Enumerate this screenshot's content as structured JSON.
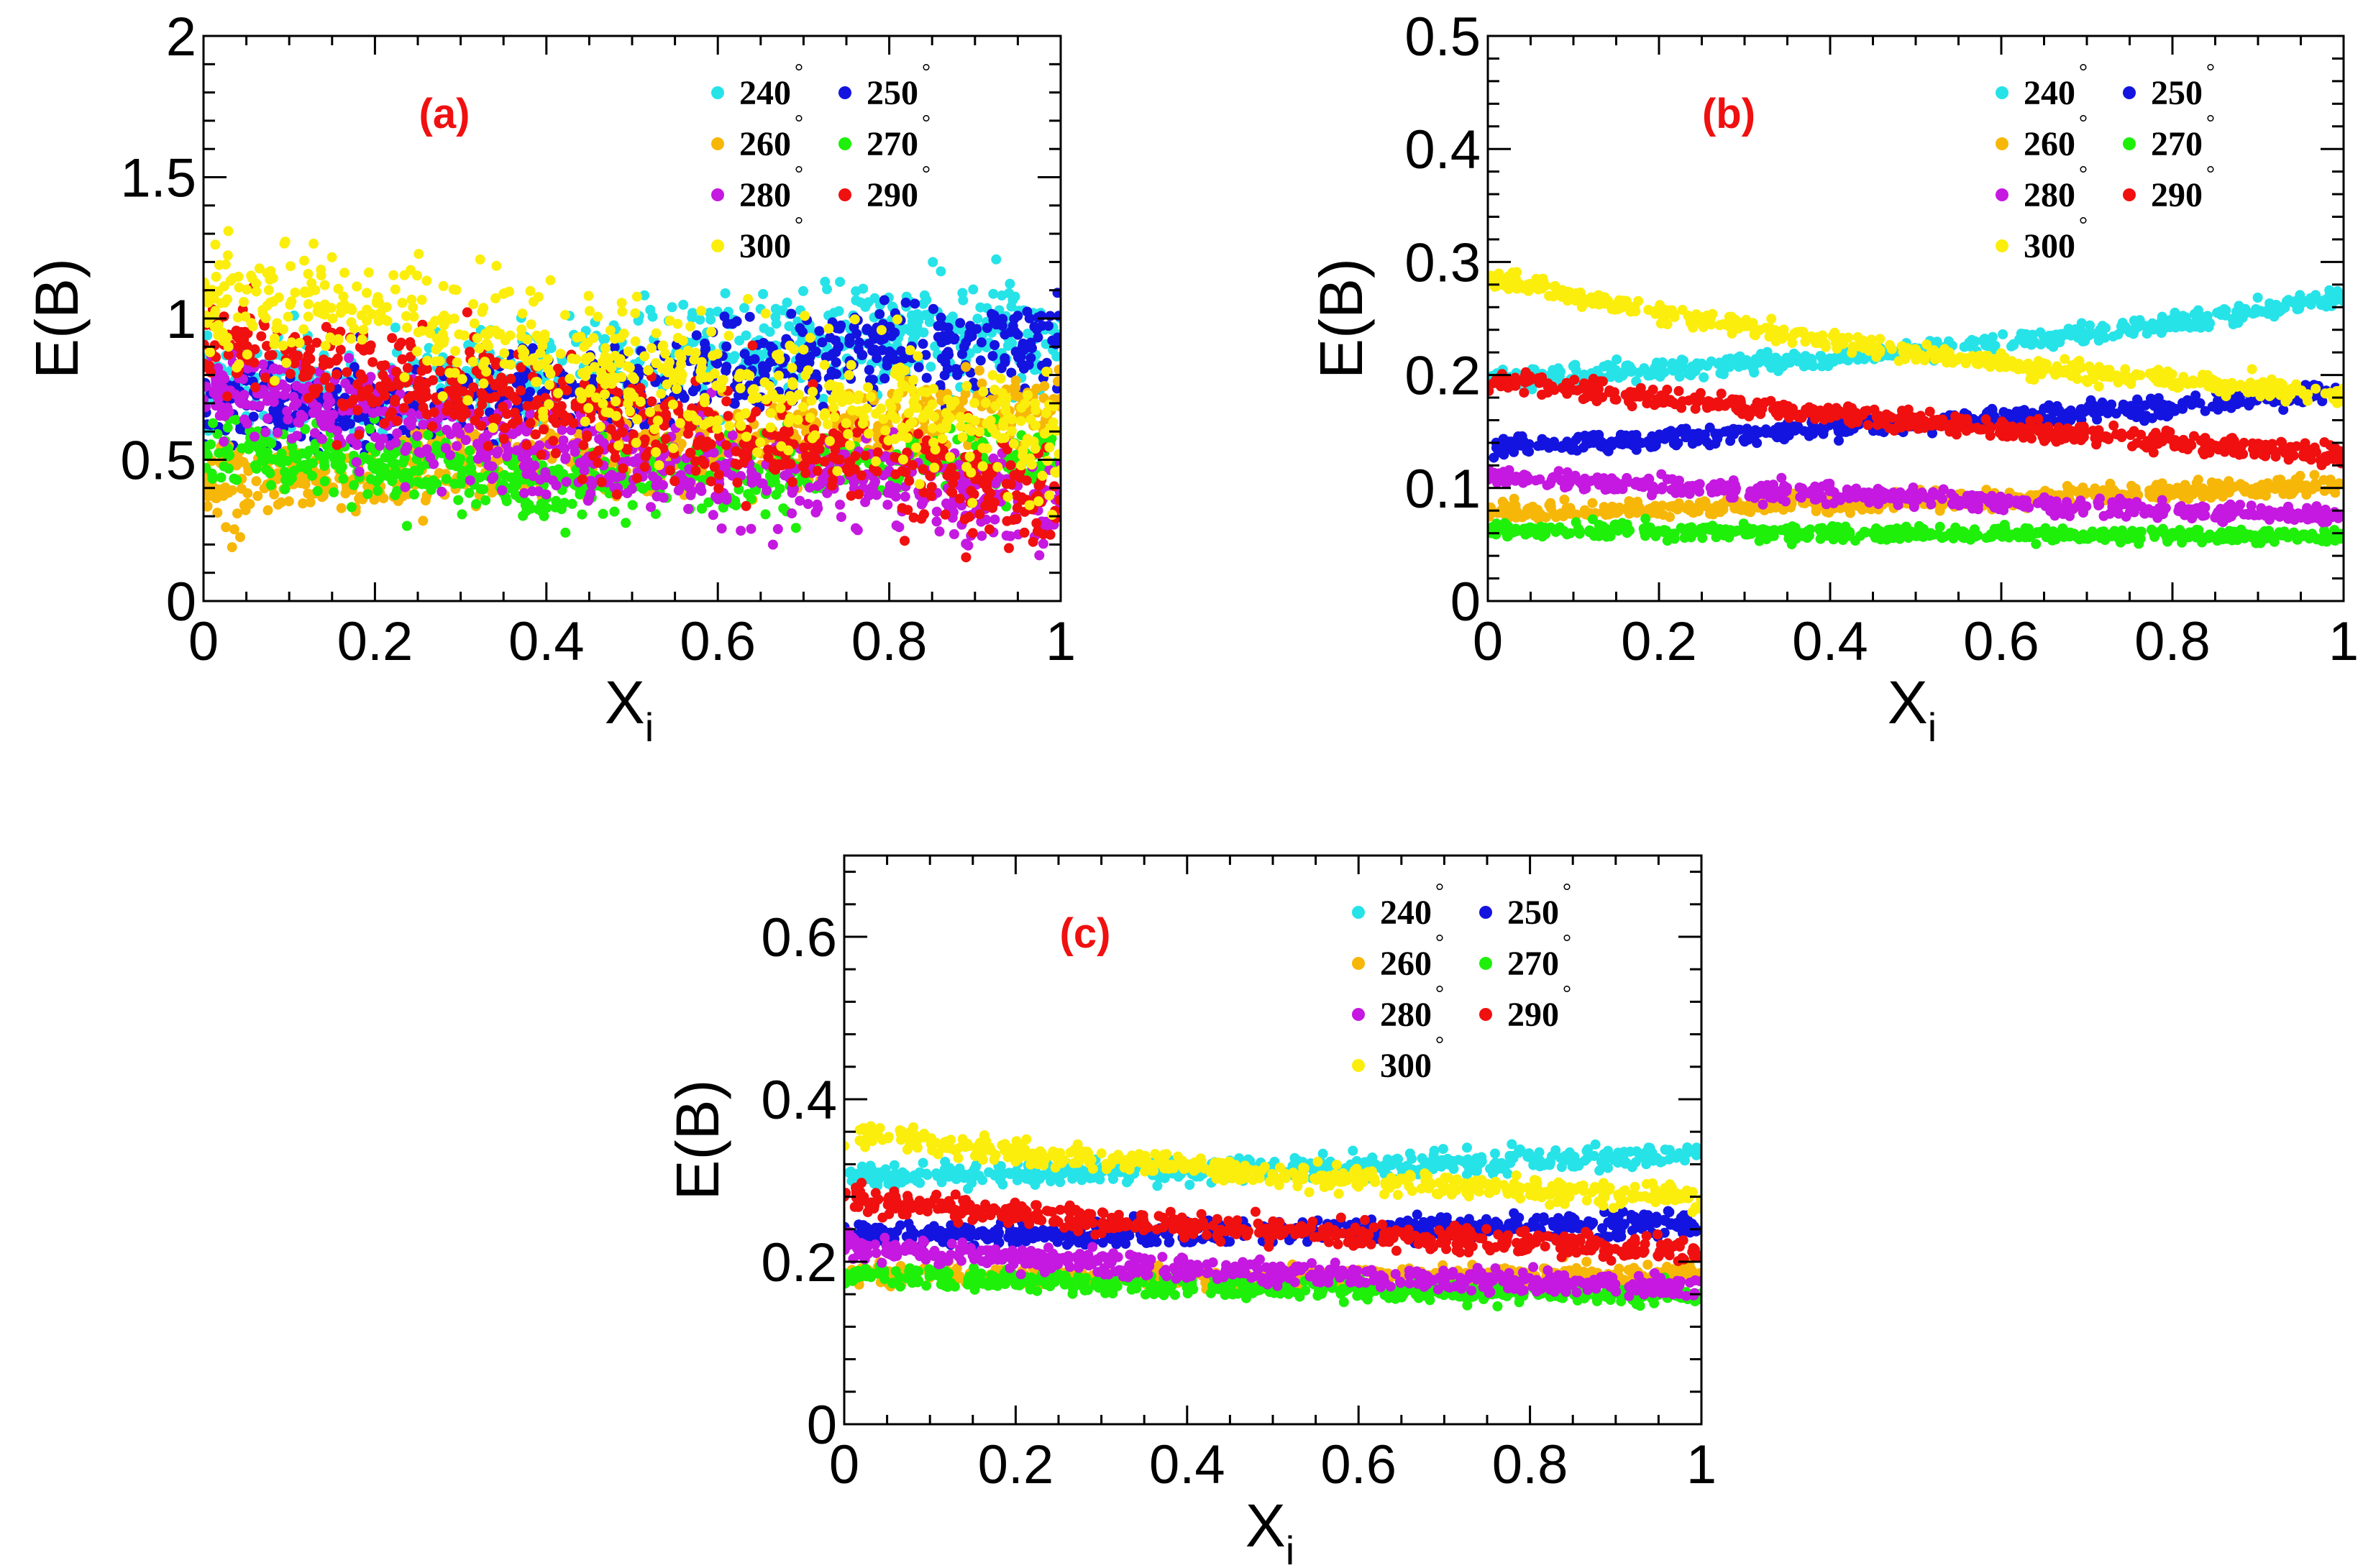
{
  "chart_data": [
    {
      "type": "scatter",
      "panel_label": "(a)",
      "xlabel": "X",
      "xlabel_sub": "i",
      "ylabel": "E(B)",
      "xlim": [
        0,
        1
      ],
      "ylim": [
        0,
        2
      ],
      "xticks": [
        "0",
        "0.2",
        "0.4",
        "0.6",
        "0.8",
        "1"
      ],
      "yticks": [
        "0",
        "0.5",
        "1",
        "1.5",
        "2"
      ],
      "legend_position": "top-right",
      "degree_symbol": "°",
      "series": [
        {
          "name": "240",
          "color": "#26e3e8",
          "x": [
            0,
            0.2,
            0.4,
            0.6,
            0.8,
            1
          ],
          "y": [
            0.75,
            0.72,
            0.8,
            0.9,
            0.95,
            0.95
          ],
          "spread": 0.09
        },
        {
          "name": "250",
          "color": "#1414e0",
          "x": [
            0,
            0.2,
            0.4,
            0.6,
            0.8,
            1
          ],
          "y": [
            0.7,
            0.68,
            0.72,
            0.8,
            0.88,
            0.92
          ],
          "spread": 0.08
        },
        {
          "name": "260",
          "color": "#f7b708",
          "x": [
            0,
            0.2,
            0.4,
            0.6,
            0.8,
            1
          ],
          "y": [
            0.42,
            0.44,
            0.5,
            0.55,
            0.62,
            0.68
          ],
          "spread": 0.07
        },
        {
          "name": "270",
          "color": "#1ef00a",
          "x": [
            0,
            0.2,
            0.4,
            0.6,
            0.8,
            1
          ],
          "y": [
            0.55,
            0.48,
            0.42,
            0.44,
            0.48,
            0.5
          ],
          "spread": 0.06
        },
        {
          "name": "280",
          "color": "#c518e0",
          "x": [
            0,
            0.2,
            0.4,
            0.6,
            0.8,
            1
          ],
          "y": [
            0.75,
            0.65,
            0.52,
            0.45,
            0.42,
            0.32
          ],
          "spread": 0.08
        },
        {
          "name": "290",
          "color": "#f01010",
          "x": [
            0,
            0.2,
            0.4,
            0.6,
            0.8,
            1
          ],
          "y": [
            0.95,
            0.8,
            0.66,
            0.58,
            0.5,
            0.35
          ],
          "spread": 0.09
        },
        {
          "name": "300",
          "color": "#fbee0c",
          "x": [
            0,
            0.2,
            0.4,
            0.6,
            0.8,
            1
          ],
          "y": [
            1.05,
            1.05,
            0.85,
            0.75,
            0.7,
            0.55
          ],
          "spread": 0.11
        }
      ]
    },
    {
      "type": "scatter",
      "panel_label": "(b)",
      "xlabel": "X",
      "xlabel_sub": "i",
      "ylabel": "E(B)",
      "xlim": [
        0,
        1
      ],
      "ylim": [
        0,
        0.5
      ],
      "xticks": [
        "0",
        "0.2",
        "0.4",
        "0.6",
        "0.8",
        "1"
      ],
      "yticks": [
        "0",
        "0.1",
        "0.2",
        "0.3",
        "0.4",
        "0.5"
      ],
      "legend_position": "top-right",
      "degree_symbol": "°",
      "series": [
        {
          "name": "240",
          "color": "#26e3e8",
          "x": [
            0,
            0.2,
            0.4,
            0.6,
            0.8,
            1
          ],
          "y": [
            0.195,
            0.205,
            0.215,
            0.228,
            0.245,
            0.27
          ],
          "spread": 0.004
        },
        {
          "name": "250",
          "color": "#1414e0",
          "x": [
            0,
            0.2,
            0.4,
            0.6,
            0.8,
            1
          ],
          "y": [
            0.137,
            0.143,
            0.152,
            0.162,
            0.173,
            0.185
          ],
          "spread": 0.004
        },
        {
          "name": "260",
          "color": "#f7b708",
          "x": [
            0,
            0.2,
            0.4,
            0.6,
            0.8,
            1
          ],
          "y": [
            0.078,
            0.082,
            0.086,
            0.091,
            0.097,
            0.102
          ],
          "spread": 0.004
        },
        {
          "name": "270",
          "color": "#1ef00a",
          "x": [
            0,
            0.2,
            0.4,
            0.6,
            0.8,
            1
          ],
          "y": [
            0.063,
            0.062,
            0.06,
            0.059,
            0.058,
            0.057
          ],
          "spread": 0.003
        },
        {
          "name": "280",
          "color": "#c518e0",
          "x": [
            0,
            0.2,
            0.4,
            0.6,
            0.8,
            1
          ],
          "y": [
            0.11,
            0.102,
            0.094,
            0.087,
            0.081,
            0.076
          ],
          "spread": 0.004
        },
        {
          "name": "290",
          "color": "#f01010",
          "x": [
            0,
            0.2,
            0.4,
            0.6,
            0.8,
            1
          ],
          "y": [
            0.195,
            0.18,
            0.165,
            0.152,
            0.141,
            0.13
          ],
          "spread": 0.004
        },
        {
          "name": "300",
          "color": "#fbee0c",
          "x": [
            0,
            0.2,
            0.4,
            0.6,
            0.8,
            1
          ],
          "y": [
            0.285,
            0.255,
            0.23,
            0.21,
            0.195,
            0.18
          ],
          "spread": 0.004
        }
      ]
    },
    {
      "type": "scatter",
      "panel_label": "(c)",
      "xlabel": "X",
      "xlabel_sub": "i",
      "ylabel": "E(B)",
      "xlim": [
        0,
        1
      ],
      "ylim": [
        0,
        0.7
      ],
      "xticks": [
        "0",
        "0.2",
        "0.4",
        "0.6",
        "0.8",
        "1"
      ],
      "yticks": [
        "0",
        "0.2",
        "0.4",
        "0.6"
      ],
      "legend_position": "top-right",
      "degree_symbol": "°",
      "series": [
        {
          "name": "240",
          "color": "#26e3e8",
          "x": [
            0,
            0.2,
            0.4,
            0.6,
            0.8,
            1
          ],
          "y": [
            0.305,
            0.308,
            0.312,
            0.318,
            0.325,
            0.332
          ],
          "spread": 0.007
        },
        {
          "name": "250",
          "color": "#1414e0",
          "x": [
            0,
            0.2,
            0.4,
            0.6,
            0.8,
            1
          ],
          "y": [
            0.232,
            0.234,
            0.237,
            0.24,
            0.244,
            0.248
          ],
          "spread": 0.007
        },
        {
          "name": "260",
          "color": "#f7b708",
          "x": [
            0,
            0.2,
            0.4,
            0.6,
            0.8,
            1
          ],
          "y": [
            0.185,
            0.182,
            0.18,
            0.18,
            0.182,
            0.185
          ],
          "spread": 0.006
        },
        {
          "name": "270",
          "color": "#1ef00a",
          "x": [
            0,
            0.2,
            0.4,
            0.6,
            0.8,
            1
          ],
          "y": [
            0.185,
            0.176,
            0.17,
            0.166,
            0.163,
            0.16
          ],
          "spread": 0.006
        },
        {
          "name": "280",
          "color": "#c518e0",
          "x": [
            0,
            0.2,
            0.4,
            0.6,
            0.8,
            1
          ],
          "y": [
            0.22,
            0.205,
            0.192,
            0.182,
            0.174,
            0.168
          ],
          "spread": 0.007
        },
        {
          "name": "290",
          "color": "#f01010",
          "x": [
            0,
            0.2,
            0.4,
            0.6,
            0.8,
            1
          ],
          "y": [
            0.28,
            0.26,
            0.244,
            0.232,
            0.222,
            0.212
          ],
          "spread": 0.007
        },
        {
          "name": "300",
          "color": "#fbee0c",
          "x": [
            0,
            0.2,
            0.4,
            0.6,
            0.8,
            1
          ],
          "y": [
            0.36,
            0.335,
            0.315,
            0.3,
            0.288,
            0.278
          ],
          "spread": 0.007
        }
      ]
    }
  ]
}
